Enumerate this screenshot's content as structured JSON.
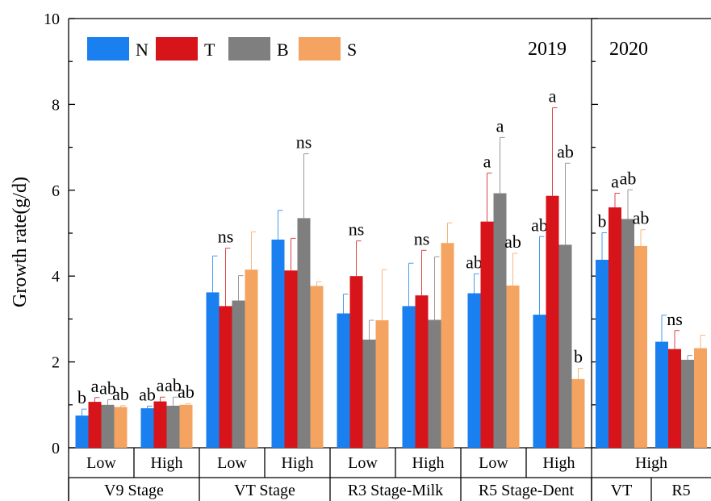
{
  "chart_data": {
    "type": "bar",
    "y_label": "Growth rate(g/d)",
    "ylim": [
      0,
      10
    ],
    "yticks": [
      0,
      2,
      4,
      6,
      8,
      10
    ],
    "series": [
      {
        "name": "N",
        "color": "#1a7fef",
        "values": [
          0.75,
          0.92,
          3.62,
          4.85,
          3.13,
          3.3,
          3.6,
          3.1,
          4.38,
          2.47
        ],
        "errors": [
          0.15,
          0.05,
          0.85,
          0.68,
          0.45,
          1.0,
          0.45,
          1.82,
          0.63,
          0.62
        ],
        "labels": [
          "b",
          "ab",
          null,
          null,
          null,
          null,
          "ab",
          "ab",
          "b",
          null
        ]
      },
      {
        "name": "T",
        "color": "#d7141a",
        "values": [
          1.07,
          1.08,
          3.3,
          4.13,
          4.0,
          3.55,
          5.27,
          5.87,
          5.6,
          2.3
        ],
        "errors": [
          0.1,
          0.1,
          1.35,
          0.75,
          0.82,
          1.05,
          1.13,
          2.05,
          0.33,
          0.43
        ],
        "labels": [
          "a",
          "a",
          "ns",
          null,
          "ns",
          "ns",
          "a",
          "a",
          "a",
          "ns"
        ]
      },
      {
        "name": "B",
        "color": "#7f7f7f",
        "values": [
          1.0,
          0.98,
          3.43,
          5.35,
          2.52,
          2.98,
          5.93,
          4.73,
          5.33,
          2.05
        ],
        "errors": [
          0.12,
          0.2,
          0.58,
          1.5,
          0.45,
          1.47,
          1.3,
          1.9,
          0.68,
          0.1
        ],
        "labels": [
          "ab",
          "ab",
          null,
          "ns",
          null,
          null,
          "a",
          "ab",
          "ab",
          null
        ]
      },
      {
        "name": "S",
        "color": "#f4a460",
        "values": [
          0.95,
          1.0,
          4.15,
          3.77,
          2.97,
          4.77,
          3.78,
          1.6,
          4.7,
          2.32
        ],
        "errors": [
          0.03,
          0.03,
          0.88,
          0.1,
          1.18,
          0.47,
          0.75,
          0.25,
          0.38,
          0.3
        ],
        "labels": [
          "ab",
          "ab",
          null,
          null,
          null,
          null,
          "ab",
          "b",
          "ab",
          null
        ]
      }
    ],
    "panels": [
      {
        "title": "2019",
        "groups": [
          {
            "name": "V9 Stage",
            "categories": [
              "Low",
              "High"
            ]
          },
          {
            "name": "VT Stage",
            "categories": [
              "Low",
              "High"
            ]
          },
          {
            "name": "R3 Stage-Milk",
            "categories": [
              "Low",
              "High"
            ]
          },
          {
            "name": "R5 Stage-Dent",
            "categories": [
              "Low",
              "High"
            ]
          }
        ]
      },
      {
        "title": "2020",
        "category": "High",
        "groups": [
          {
            "name": "VT"
          },
          {
            "name": "R5"
          }
        ]
      }
    ]
  }
}
